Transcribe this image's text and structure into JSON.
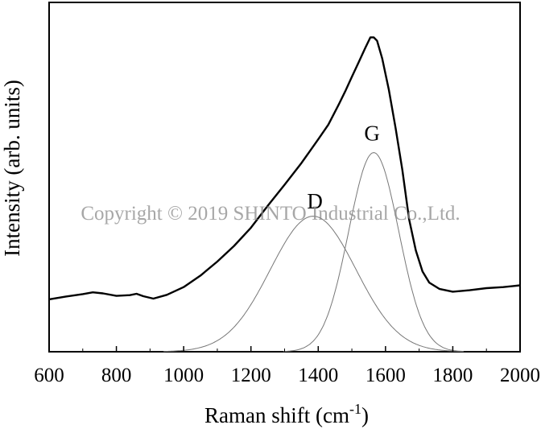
{
  "chart_data": {
    "type": "line",
    "xlabel": "Raman shift (cm",
    "xlabel_sup": "-1",
    "xlabel_end": ")",
    "ylabel": "Intensity (arb. units)",
    "xlim": [
      600,
      2000
    ],
    "ylim": [
      0,
      1.0
    ],
    "x_ticks": [
      600,
      800,
      1000,
      1200,
      1400,
      1600,
      1800,
      2000
    ],
    "y_ticks_shown": false,
    "grid": false,
    "watermark": "Copyright © 2019 SHINTO Industrial Co.,Ltd.",
    "series": [
      {
        "x": [
          600,
          650,
          700,
          730,
          760,
          800,
          840,
          860,
          880,
          910,
          950,
          1000,
          1050,
          1100,
          1150,
          1200,
          1250,
          1300,
          1350,
          1400,
          1430,
          1460,
          1480,
          1500,
          1520,
          1540,
          1555,
          1565,
          1575,
          1590,
          1610,
          1630,
          1650,
          1670,
          1690,
          1710,
          1730,
          1760,
          1800,
          1850,
          1900,
          1950,
          2000
        ],
        "values": [
          0.15,
          0.158,
          0.165,
          0.17,
          0.167,
          0.16,
          0.162,
          0.166,
          0.159,
          0.152,
          0.163,
          0.185,
          0.218,
          0.258,
          0.303,
          0.355,
          0.418,
          0.478,
          0.54,
          0.608,
          0.65,
          0.706,
          0.745,
          0.787,
          0.828,
          0.87,
          0.9,
          0.9,
          0.89,
          0.84,
          0.75,
          0.64,
          0.52,
          0.38,
          0.29,
          0.23,
          0.198,
          0.18,
          0.172,
          0.176,
          0.182,
          0.185,
          0.19
        ],
        "color": "#000000"
      },
      {
        "name": "D",
        "type": "gaussian",
        "center": 1385,
        "height": 0.388,
        "fwhm": 300,
        "color": "#777777"
      },
      {
        "name": "G",
        "type": "gaussian",
        "center": 1565,
        "height": 0.57,
        "fwhm": 175,
        "color": "#777777"
      }
    ],
    "annotations": [
      {
        "text": "D",
        "x": 1390,
        "y": 0.41
      },
      {
        "text": "G",
        "x": 1560,
        "y": 0.605
      }
    ]
  }
}
